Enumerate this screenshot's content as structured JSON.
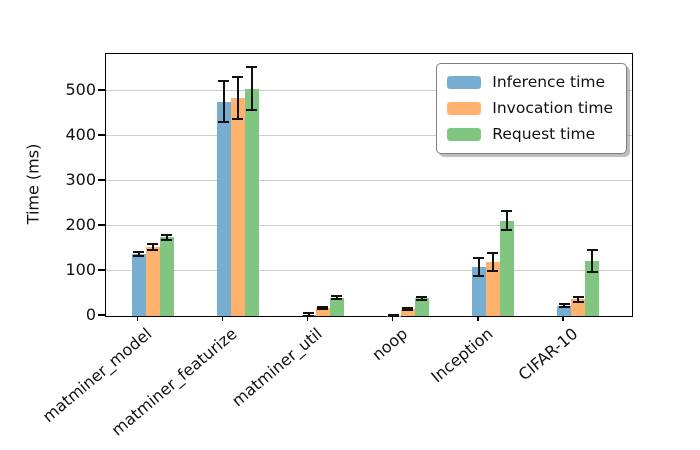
{
  "chart_data": {
    "type": "bar",
    "title": "",
    "xlabel": "",
    "ylabel": "Time (ms)",
    "categories": [
      "matminer_model",
      "matminer_featurize",
      "matminer_util",
      "noop",
      "Inception",
      "CIFAR-10"
    ],
    "series": [
      {
        "name": "Inference time",
        "color": "#78add2",
        "values": [
          138,
          476,
          3,
          1,
          108,
          23
        ],
        "errors": [
          5,
          45,
          3,
          1,
          20,
          3
        ]
      },
      {
        "name": "Invocation time",
        "color": "#ffb26e",
        "values": [
          153,
          484,
          18,
          15,
          120,
          37
        ],
        "errors": [
          7,
          47,
          2,
          2,
          20,
          6
        ]
      },
      {
        "name": "Request time",
        "color": "#80c680",
        "values": [
          175,
          505,
          41,
          39,
          212,
          122
        ],
        "errors": [
          6,
          48,
          3,
          3,
          22,
          25
        ]
      }
    ],
    "ylim": [
      0,
      582
    ],
    "yticks": [
      0,
      100,
      200,
      300,
      400,
      500
    ],
    "grid": "horizontal",
    "grid_color": "#cdcdcd",
    "axis_color": "#000000",
    "error_bar_color": "#111111",
    "legend": {
      "position": "upper-right",
      "entries": [
        "Inference time",
        "Invocation time",
        "Request time"
      ]
    },
    "tick_label_rotation_deg": 40
  }
}
